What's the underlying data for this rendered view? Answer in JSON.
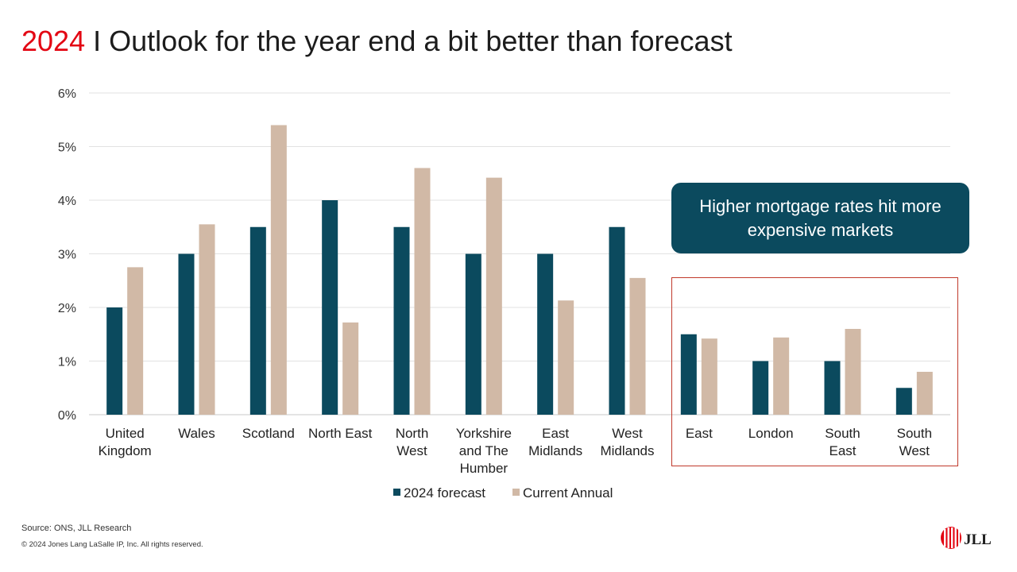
{
  "slide": {
    "title_year": "2024",
    "title_sep": " I ",
    "title_text": "Outlook for the year end a bit better than forecast",
    "callout": "Higher mortgage rates hit more expensive markets",
    "source": "Source: ONS, JLL Research",
    "copyright": "© 2024 Jones Lang LaSalle IP, Inc. All rights reserved.",
    "logo_text": "JLL"
  },
  "colors": {
    "forecast": "#0b4a5e",
    "current": "#d1b9a6",
    "title_accent": "#e30613",
    "highlight_border": "#c0392b",
    "logo": "#e30613"
  },
  "chart_data": {
    "type": "bar",
    "categories": [
      [
        "United",
        "Kingdom"
      ],
      [
        "Wales"
      ],
      [
        "Scotland"
      ],
      [
        "North East"
      ],
      [
        "North",
        "West"
      ],
      [
        "Yorkshire",
        "and The",
        "Humber"
      ],
      [
        "East",
        "Midlands"
      ],
      [
        "West",
        "Midlands"
      ],
      [
        "East"
      ],
      [
        "London"
      ],
      [
        "South",
        "East"
      ],
      [
        "South",
        "West"
      ]
    ],
    "series": [
      {
        "name": "2024 forecast",
        "values": [
          2.0,
          3.0,
          3.5,
          4.0,
          3.5,
          3.0,
          3.0,
          3.5,
          1.5,
          1.0,
          1.0,
          0.5
        ]
      },
      {
        "name": "Current Annual",
        "values": [
          2.75,
          3.55,
          5.4,
          1.72,
          4.6,
          4.42,
          2.13,
          2.55,
          1.42,
          1.44,
          1.6,
          0.8
        ]
      }
    ],
    "ylim": [
      0,
      6
    ],
    "yticks": [
      "0%",
      "1%",
      "2%",
      "3%",
      "4%",
      "5%",
      "6%"
    ],
    "grid": true,
    "legend_position": "bottom"
  }
}
